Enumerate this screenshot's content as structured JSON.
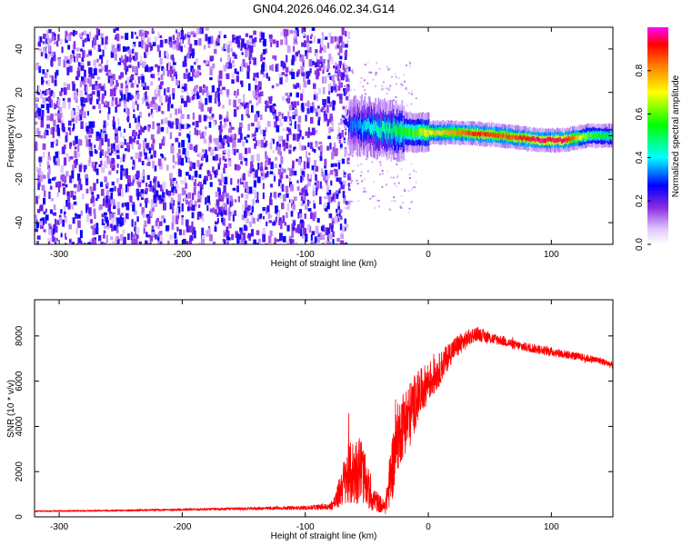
{
  "chart_data": [
    {
      "type": "heatmap",
      "title": "GN04.2026.046.02.34.G14",
      "xlabel": "Height of straight line (km)",
      "ylabel": "Frequency (Hz)",
      "xlim": [
        -320,
        150
      ],
      "ylim": [
        -50,
        50
      ],
      "xticks": [
        -300,
        -200,
        -100,
        0,
        100
      ],
      "yticks": [
        -40,
        -20,
        0,
        20,
        40
      ],
      "colorbar": {
        "label": "Normalized spectral amplitude",
        "range": [
          0,
          1
        ],
        "ticks": [
          "0.0",
          "0.2",
          "0.4",
          "0.6",
          "0.8"
        ],
        "tick_values": [
          0.0,
          0.2,
          0.4,
          0.6,
          0.8
        ]
      },
      "noise_region": {
        "x": [
          -320,
          -65
        ],
        "amplitude": "low (0.1-0.25)"
      },
      "signal_ridge": {
        "x": [
          -65,
          -50,
          -40,
          -30,
          -20,
          -10,
          0,
          20,
          40,
          60,
          75,
          90,
          110,
          130,
          150
        ],
        "freq": [
          5,
          4,
          3,
          2.5,
          2,
          1.5,
          1.5,
          1.5,
          1,
          0,
          -1,
          -2,
          -2,
          0,
          0
        ],
        "amp": [
          0.3,
          0.4,
          0.45,
          0.5,
          0.55,
          0.6,
          0.7,
          0.8,
          0.9,
          0.85,
          0.9,
          0.95,
          0.95,
          0.6,
          0.5
        ]
      }
    },
    {
      "type": "line",
      "title": "",
      "xlabel": "Height of straight line (km)",
      "ylabel": "SNR (10 * v/v)",
      "xlim": [
        -320,
        150
      ],
      "ylim": [
        0,
        9600
      ],
      "xticks": [
        -300,
        -200,
        -100,
        0,
        100
      ],
      "yticks": [
        0,
        2000,
        4000,
        6000,
        8000
      ],
      "color": "#ff0000",
      "series": [
        {
          "name": "SNR",
          "x": [
            -320,
            -250,
            -200,
            -150,
            -100,
            -80,
            -75,
            -70,
            -65,
            -60,
            -55,
            -50,
            -45,
            -40,
            -35,
            -30,
            -25,
            -20,
            -15,
            -10,
            -5,
            0,
            5,
            10,
            15,
            20,
            25,
            30,
            35,
            40,
            45,
            50,
            60,
            70,
            80,
            90,
            100,
            110,
            120,
            130,
            140,
            150
          ],
          "y": [
            250,
            280,
            320,
            360,
            400,
            450,
            700,
            1400,
            1800,
            2000,
            2200,
            1400,
            800,
            600,
            400,
            2000,
            3500,
            4200,
            4500,
            5200,
            5600,
            6000,
            6200,
            6600,
            7000,
            7400,
            7600,
            7800,
            8000,
            8100,
            8000,
            7900,
            7800,
            7600,
            7500,
            7400,
            7300,
            7200,
            7100,
            7000,
            6900,
            6700
          ],
          "noise": [
            30,
            40,
            50,
            60,
            80,
            150,
            400,
            900,
            1400,
            1500,
            1500,
            1000,
            600,
            400,
            300,
            1500,
            1500,
            1500,
            1500,
            1200,
            1000,
            900,
            800,
            700,
            600,
            500,
            500,
            400,
            350,
            300,
            300,
            250,
            220,
            200,
            200,
            200,
            200,
            180,
            170,
            160,
            150,
            150
          ]
        }
      ]
    }
  ]
}
